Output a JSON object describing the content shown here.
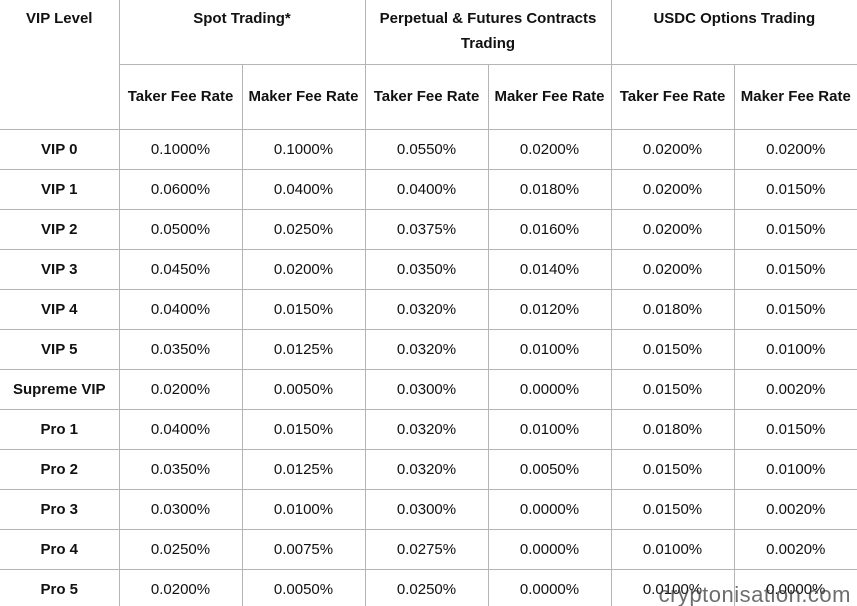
{
  "table": {
    "headers": [
      "VIP Level",
      "Spot Trading*",
      "Perpetual & Futures Contracts Trading",
      "USDC Options Trading"
    ],
    "subheaders": [
      "Taker Fee Rate",
      "Maker Fee Rate",
      "Taker Fee Rate",
      "Maker Fee Rate",
      "Taker Fee Rate",
      "Maker Fee Rate"
    ],
    "rows": [
      [
        "VIP 0",
        "0.1000%",
        "0.1000%",
        "0.0550%",
        "0.0200%",
        "0.0200%",
        "0.0200%"
      ],
      [
        "VIP 1",
        "0.0600%",
        "0.0400%",
        "0.0400%",
        "0.0180%",
        "0.0200%",
        "0.0150%"
      ],
      [
        "VIP 2",
        "0.0500%",
        "0.0250%",
        "0.0375%",
        "0.0160%",
        "0.0200%",
        "0.0150%"
      ],
      [
        "VIP 3",
        "0.0450%",
        "0.0200%",
        "0.0350%",
        "0.0140%",
        "0.0200%",
        "0.0150%"
      ],
      [
        "VIP 4",
        "0.0400%",
        "0.0150%",
        "0.0320%",
        "0.0120%",
        "0.0180%",
        "0.0150%"
      ],
      [
        "VIP 5",
        "0.0350%",
        "0.0125%",
        "0.0320%",
        "0.0100%",
        "0.0150%",
        "0.0100%"
      ],
      [
        "Supreme VIP",
        "0.0200%",
        "0.0050%",
        "0.0300%",
        "0.0000%",
        "0.0150%",
        "0.0020%"
      ],
      [
        "Pro 1",
        "0.0400%",
        "0.0150%",
        "0.0320%",
        "0.0100%",
        "0.0180%",
        "0.0150%"
      ],
      [
        "Pro 2",
        "0.0350%",
        "0.0125%",
        "0.0320%",
        "0.0050%",
        "0.0150%",
        "0.0100%"
      ],
      [
        "Pro 3",
        "0.0300%",
        "0.0100%",
        "0.0300%",
        "0.0000%",
        "0.0150%",
        "0.0020%"
      ],
      [
        "Pro 4",
        "0.0250%",
        "0.0075%",
        "0.0275%",
        "0.0000%",
        "0.0100%",
        "0.0020%"
      ],
      [
        "Pro 5",
        "0.0200%",
        "0.0050%",
        "0.0250%",
        "0.0000%",
        "0.0100%",
        "0.0000%"
      ]
    ]
  },
  "watermark": "cryptonisation.com"
}
